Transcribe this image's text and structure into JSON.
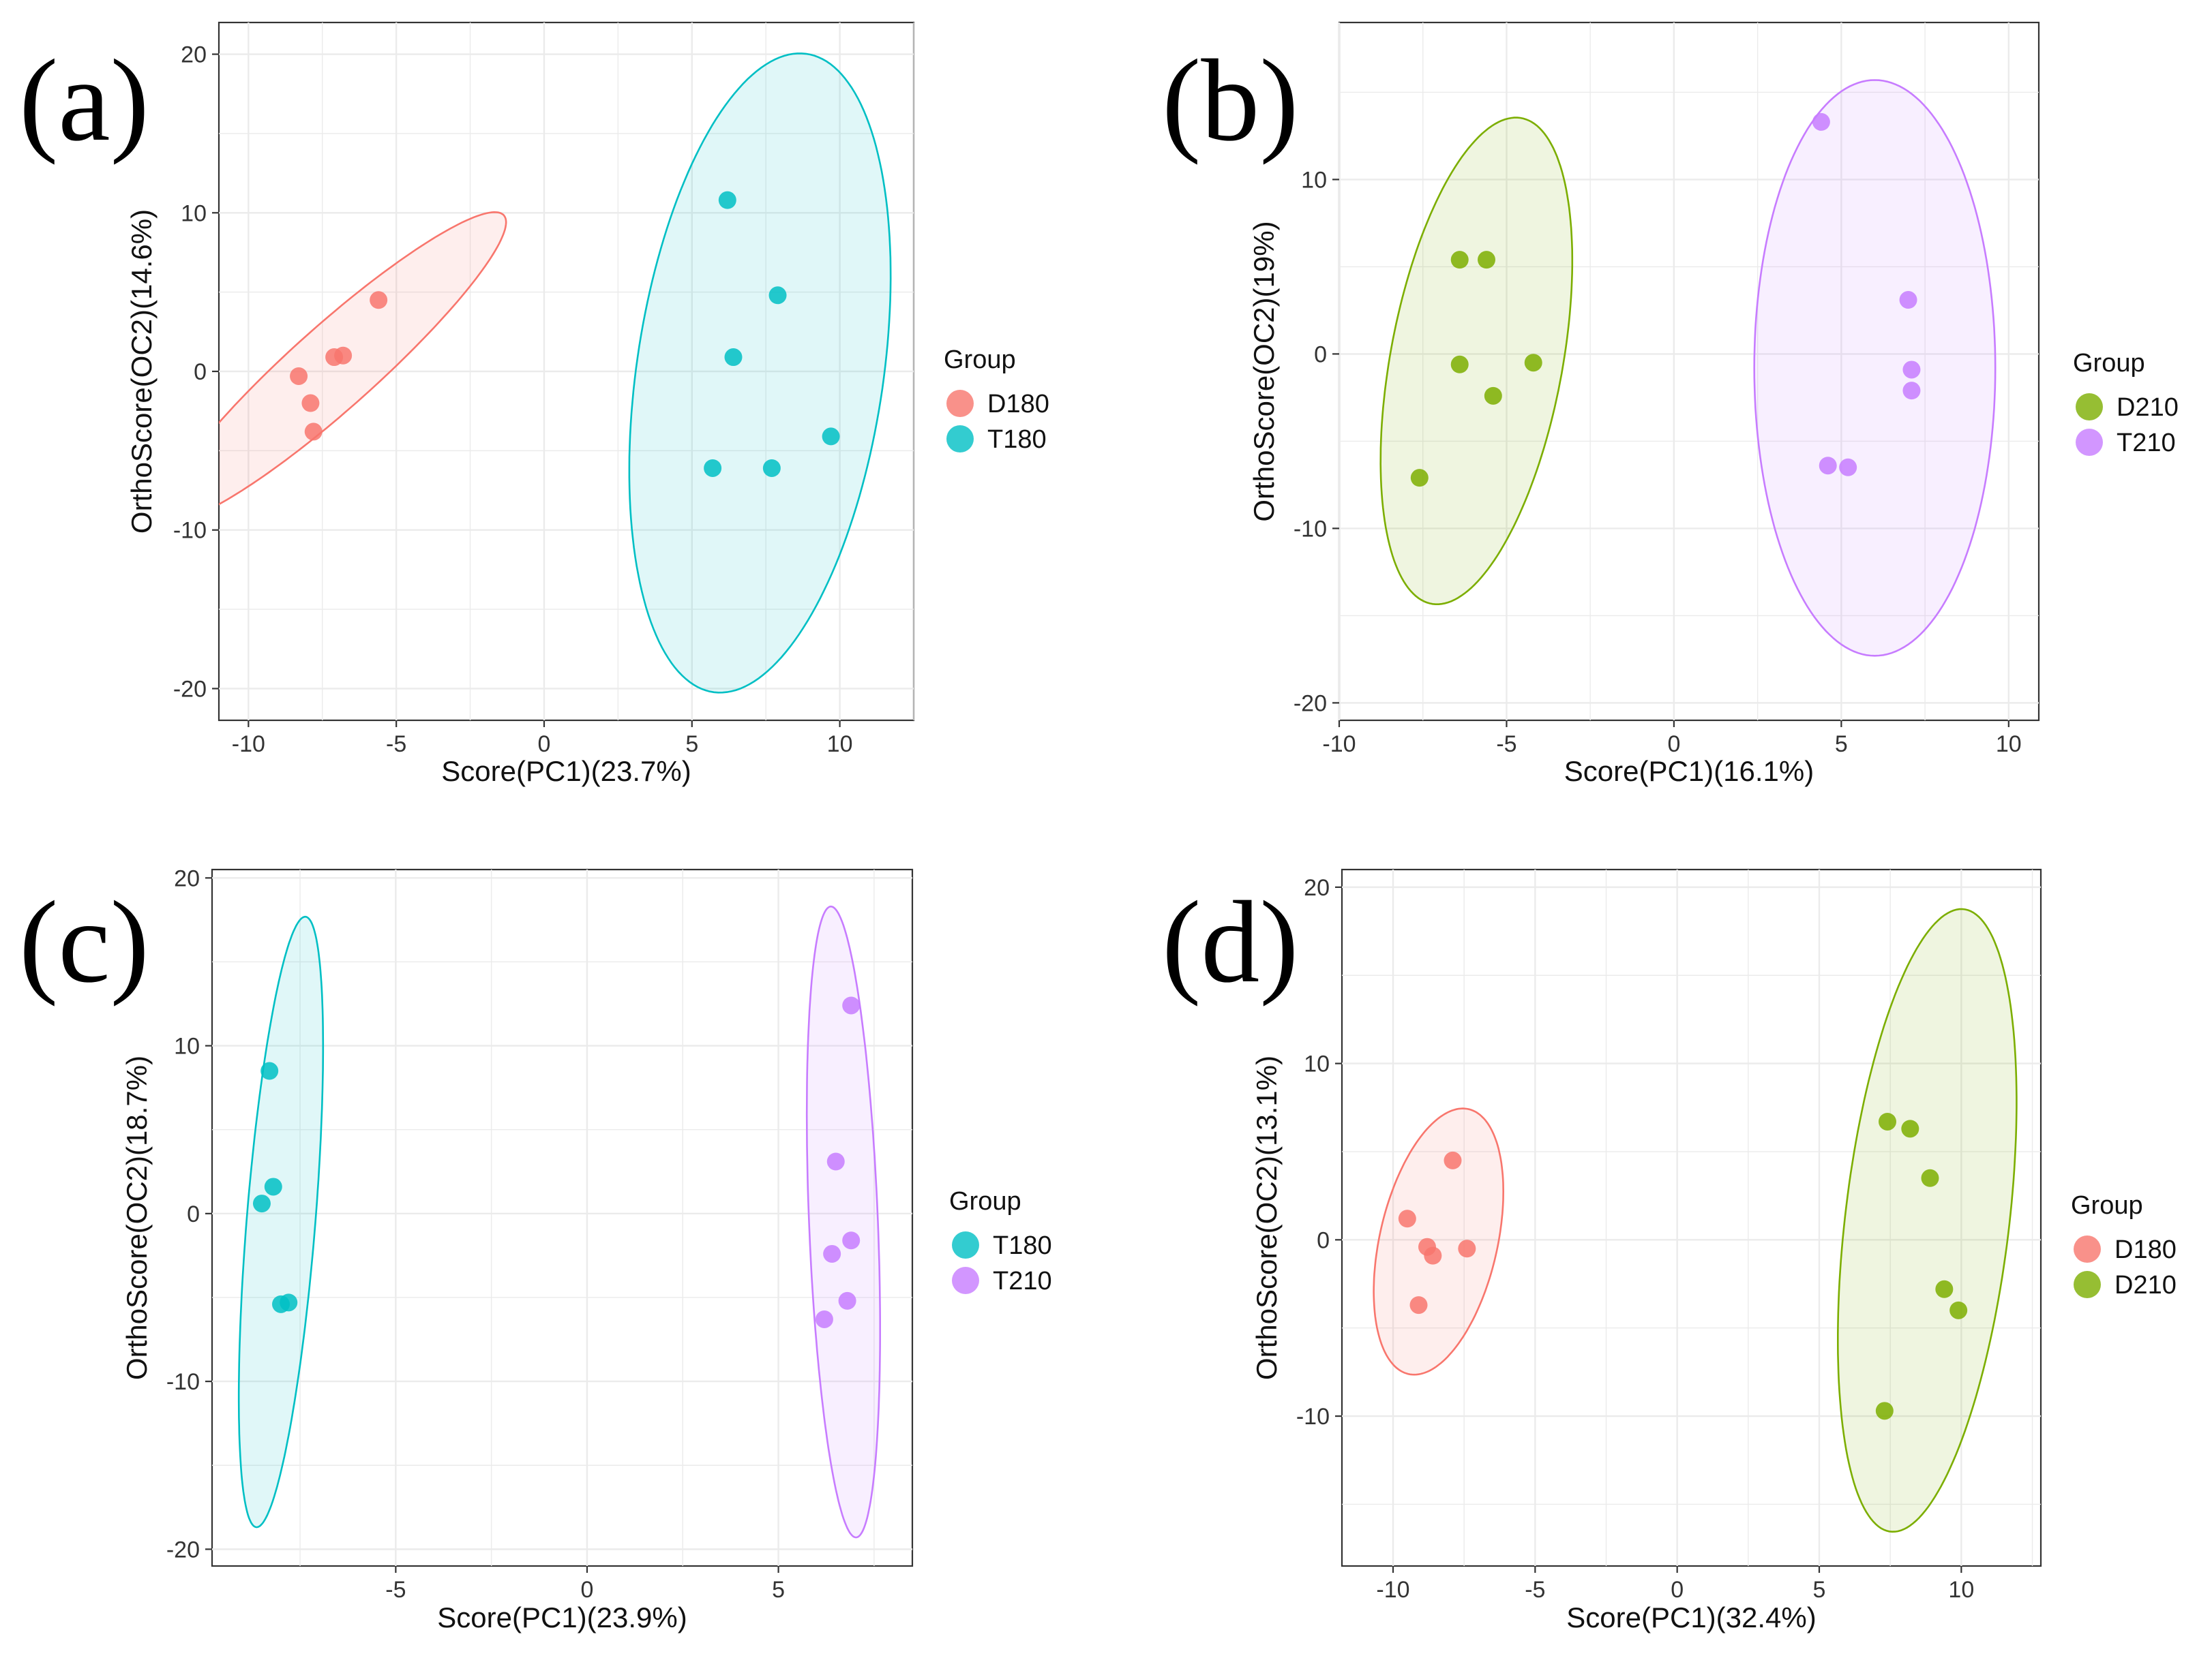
{
  "chart_data": [
    {
      "type": "scatter",
      "panel_label": "(a)",
      "xlabel": "Score(PC1)(23.7%)",
      "ylabel": "OrthoScore(OC2)(14.6%)",
      "xlim": [
        -11,
        12.5
      ],
      "ylim": [
        -22,
        22
      ],
      "xticks": [
        -10,
        -5,
        0,
        5,
        10
      ],
      "xtick_labels": [
        "-10",
        "-5",
        "0",
        "5",
        "10"
      ],
      "yticks": [
        -20,
        -10,
        0,
        10,
        20
      ],
      "ytick_labels": [
        "-20",
        "-10",
        "0",
        "10",
        "20"
      ],
      "grid": true,
      "legend_title": "Group",
      "legend_position": "right",
      "series": [
        {
          "name": "D180",
          "color": "#F8766D",
          "points": [
            [
              -5.6,
              4.5
            ],
            [
              -6.8,
              1.0
            ],
            [
              -7.1,
              0.9
            ],
            [
              -8.3,
              -0.3
            ],
            [
              -7.9,
              -2.0
            ],
            [
              -7.8,
              -3.8
            ]
          ],
          "ellipse": {
            "cx": -7.1,
            "cy": 0.3,
            "rx": 11.2,
            "ry": 1.8,
            "angle": 60
          }
        },
        {
          "name": "T180",
          "color": "#00BFC4",
          "points": [
            [
              6.2,
              10.8
            ],
            [
              7.9,
              4.8
            ],
            [
              6.4,
              0.9
            ],
            [
              5.7,
              -6.1
            ],
            [
              7.7,
              -6.1
            ],
            [
              9.7,
              -4.1
            ]
          ],
          "ellipse": {
            "cx": 7.3,
            "cy": -0.1,
            "rx": 20.2,
            "ry": 4.2,
            "angle": 86
          }
        }
      ]
    },
    {
      "type": "scatter",
      "panel_label": "(b)",
      "xlabel": "Score(PC1)(16.1%)",
      "ylabel": "OrthoScore(OC2)(19%)",
      "xlim": [
        -10,
        10.9
      ],
      "ylim": [
        -21,
        19
      ],
      "xticks": [
        -10,
        -5,
        0,
        5,
        10
      ],
      "xtick_labels": [
        "-10",
        "-5",
        "0",
        "5",
        "10"
      ],
      "yticks": [
        -20,
        -10,
        0,
        10
      ],
      "ytick_labels": [
        "-20",
        "-10",
        "0",
        "10"
      ],
      "grid": true,
      "legend_title": "Group",
      "legend_position": "right",
      "series": [
        {
          "name": "D210",
          "color": "#7CAE00",
          "points": [
            [
              -6.4,
              5.4
            ],
            [
              -5.6,
              5.4
            ],
            [
              -6.4,
              -0.6
            ],
            [
              -4.2,
              -0.5
            ],
            [
              -5.4,
              -2.4
            ],
            [
              -7.6,
              -7.1
            ]
          ],
          "ellipse": {
            "cx": -5.9,
            "cy": -0.4,
            "rx": 14.0,
            "ry": 2.6,
            "angle": 85
          }
        },
        {
          "name": "T210",
          "color": "#C77CFF",
          "points": [
            [
              4.4,
              13.3
            ],
            [
              7.0,
              3.1
            ],
            [
              7.1,
              -0.9
            ],
            [
              7.1,
              -2.1
            ],
            [
              4.6,
              -6.4
            ],
            [
              5.2,
              -6.5
            ]
          ],
          "ellipse": {
            "cx": 6.0,
            "cy": -0.8,
            "rx": 16.5,
            "ry": 3.6,
            "angle": 90
          }
        }
      ]
    },
    {
      "type": "scatter",
      "panel_label": "(c)",
      "xlabel": "Score(PC1)(23.9%)",
      "ylabel": "OrthoScore(OC2)(18.7%)",
      "xlim": [
        -9.8,
        8.5
      ],
      "ylim": [
        -21,
        20.5
      ],
      "xticks": [
        -5,
        0,
        5
      ],
      "xtick_labels": [
        "-5",
        "0",
        "5"
      ],
      "yticks": [
        -20,
        -10,
        0,
        10,
        20
      ],
      "ytick_labels": [
        "-20",
        "-10",
        "0",
        "10",
        "20"
      ],
      "grid": true,
      "legend_title": "Group",
      "legend_position": "right",
      "series": [
        {
          "name": "T180",
          "color": "#00BFC4",
          "points": [
            [
              -8.3,
              8.5
            ],
            [
              -8.2,
              1.6
            ],
            [
              -8.5,
              0.6
            ],
            [
              -8.0,
              -5.4
            ],
            [
              -7.8,
              -5.3
            ]
          ],
          "ellipse": {
            "cx": -8.0,
            "cy": -0.5,
            "rx": 18.2,
            "ry": 0.9,
            "angle": 88
          }
        },
        {
          "name": "T210",
          "color": "#C77CFF",
          "points": [
            [
              6.9,
              12.4
            ],
            [
              6.5,
              3.1
            ],
            [
              6.9,
              -1.6
            ],
            [
              6.4,
              -2.4
            ],
            [
              6.8,
              -5.2
            ],
            [
              6.2,
              -6.3
            ]
          ],
          "ellipse": {
            "cx": 6.7,
            "cy": -0.5,
            "rx": 18.8,
            "ry": 0.9,
            "angle": 91
          }
        }
      ]
    },
    {
      "type": "scatter",
      "panel_label": "(d)",
      "xlabel": "Score(PC1)(32.4%)",
      "ylabel": "OrthoScore(OC2)(13.1%)",
      "xlim": [
        -11.8,
        12.8
      ],
      "ylim": [
        -18.5,
        21
      ],
      "xticks": [
        -10,
        -5,
        0,
        5,
        10
      ],
      "xtick_labels": [
        "-10",
        "-5",
        "0",
        "5",
        "10"
      ],
      "yticks": [
        -10,
        0,
        10,
        20
      ],
      "ytick_labels": [
        "-10",
        "0",
        "10",
        "20"
      ],
      "grid": true,
      "legend_title": "Group",
      "legend_position": "right",
      "series": [
        {
          "name": "D180",
          "color": "#F8766D",
          "points": [
            [
              -7.9,
              4.5
            ],
            [
              -9.5,
              1.2
            ],
            [
              -8.8,
              -0.4
            ],
            [
              -8.6,
              -0.9
            ],
            [
              -7.4,
              -0.5
            ],
            [
              -9.1,
              -3.7
            ]
          ],
          "ellipse": {
            "cx": -8.4,
            "cy": -0.1,
            "rx": 7.6,
            "ry": 2.1,
            "angle": 83
          }
        },
        {
          "name": "D210",
          "color": "#7CAE00",
          "points": [
            [
              7.4,
              6.7
            ],
            [
              8.2,
              6.3
            ],
            [
              8.9,
              3.5
            ],
            [
              9.4,
              -2.8
            ],
            [
              9.9,
              -4.0
            ],
            [
              7.3,
              -9.7
            ]
          ],
          "ellipse": {
            "cx": 8.8,
            "cy": 1.1,
            "rx": 17.7,
            "ry": 2.9,
            "angle": 86
          }
        }
      ]
    }
  ]
}
